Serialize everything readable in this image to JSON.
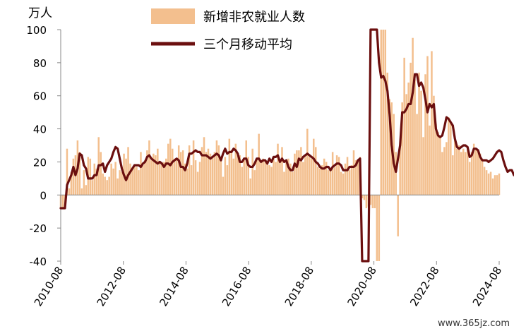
{
  "chart_data": {
    "type": "bar+line",
    "unit_label": "万人",
    "ylim": [
      -40,
      100
    ],
    "y_ticks": [
      "100",
      "80",
      "60",
      "40",
      "20",
      "0",
      "-20",
      "-40"
    ],
    "x_tick_labels": [
      "2010-08",
      "2012-08",
      "2014-08",
      "2016-08",
      "2018-08",
      "2020-08",
      "2022-08",
      "2024-08"
    ],
    "x_start": "2010-08",
    "x_end": "2024-08",
    "legend_position": "top-right",
    "series": [
      {
        "name": "新增非农就业人数",
        "type": "bar",
        "color": "#f3bf8e",
        "values": [
          -8,
          -8,
          -8,
          28,
          4,
          14,
          22,
          24,
          33,
          26,
          4,
          15,
          6,
          23,
          22,
          9,
          19,
          16,
          35,
          26,
          13,
          11,
          9,
          11,
          19,
          16,
          20,
          10,
          15,
          14,
          25,
          22,
          29,
          19,
          16,
          17,
          17,
          15,
          26,
          18,
          21,
          27,
          33,
          21,
          25,
          24,
          28,
          19,
          20,
          20,
          22,
          31,
          34,
          28,
          22,
          22,
          30,
          26,
          27,
          19,
          16,
          30,
          18,
          33,
          21,
          14,
          20,
          29,
          35,
          26,
          28,
          25,
          23,
          26,
          33,
          30,
          23,
          11,
          23,
          18,
          34,
          27,
          22,
          31,
          25,
          24,
          17,
          21,
          33,
          23,
          10,
          28,
          15,
          22,
          37,
          20,
          22,
          20,
          19,
          18,
          17,
          23,
          20,
          31,
          20,
          29,
          14,
          20,
          22,
          19,
          14,
          25,
          27,
          27,
          29,
          20,
          23,
          40,
          23,
          22,
          34,
          29,
          17,
          16,
          18,
          22,
          20,
          15,
          15,
          26,
          17,
          24,
          23,
          14,
          13,
          19,
          23,
          15,
          18,
          27,
          21,
          21,
          23,
          -2,
          -3,
          -8,
          -7,
          -6,
          -8,
          -8,
          -40,
          -40,
          100,
          100,
          100,
          74,
          58,
          56,
          49,
          26,
          -25,
          29,
          56,
          83,
          61,
          68,
          80,
          95,
          70,
          49,
          74,
          63,
          35,
          73,
          84,
          42,
          87,
          60,
          43,
          38,
          35,
          26,
          29,
          32,
          47,
          44,
          24,
          34,
          28,
          30,
          26,
          28,
          26,
          29,
          20,
          26,
          31,
          28,
          27,
          25,
          21,
          17,
          15,
          13,
          14,
          10,
          12,
          12,
          13
        ]
      },
      {
        "name": "三个月移动平均",
        "type": "line",
        "color": "#6b0f0f",
        "values": [
          -8,
          -8,
          -8,
          6,
          9,
          12,
          17,
          12,
          16,
          25,
          24,
          18,
          16,
          10,
          10,
          10,
          12,
          12,
          18,
          18,
          19,
          14,
          18,
          20,
          22,
          26,
          29,
          28,
          22,
          16,
          12,
          9,
          12,
          14,
          16,
          18,
          18,
          18,
          17,
          19,
          20,
          23,
          24,
          22,
          21,
          20,
          19,
          20,
          19,
          17,
          19,
          19,
          18,
          20,
          21,
          22,
          21,
          17,
          17,
          15,
          19,
          25,
          25,
          26,
          27,
          26,
          26,
          24,
          24,
          24,
          23,
          22,
          23,
          24,
          25,
          24,
          21,
          25,
          28,
          25,
          26,
          26,
          28,
          27,
          25,
          20,
          20,
          22,
          22,
          18,
          17,
          17,
          19,
          22,
          22,
          20,
          21,
          21,
          19,
          22,
          20,
          23,
          23,
          24,
          20,
          22,
          20,
          21,
          17,
          15,
          15,
          19,
          17,
          22,
          21,
          23,
          24,
          25,
          24,
          23,
          22,
          20,
          19,
          17,
          16,
          16,
          17,
          17,
          15,
          17,
          18,
          19,
          19,
          18,
          15,
          15,
          15,
          17,
          17,
          17,
          18,
          21,
          22,
          -40,
          -40,
          -40,
          -40,
          100,
          100,
          100,
          100,
          80,
          71,
          72,
          69,
          63,
          49,
          30,
          19,
          14,
          22,
          30,
          50,
          50,
          52,
          55,
          55,
          62,
          73,
          73,
          66,
          68,
          65,
          58,
          50,
          55,
          53,
          55,
          40,
          36,
          35,
          36,
          41,
          47,
          46,
          44,
          42,
          34,
          29,
          28,
          29,
          30,
          30,
          29,
          23,
          24,
          28,
          28,
          27,
          23,
          21,
          21,
          21,
          20,
          21,
          22,
          24,
          26,
          27,
          26,
          21,
          17,
          14,
          15,
          15,
          12
        ]
      }
    ]
  },
  "watermark": "www.365jz.com"
}
